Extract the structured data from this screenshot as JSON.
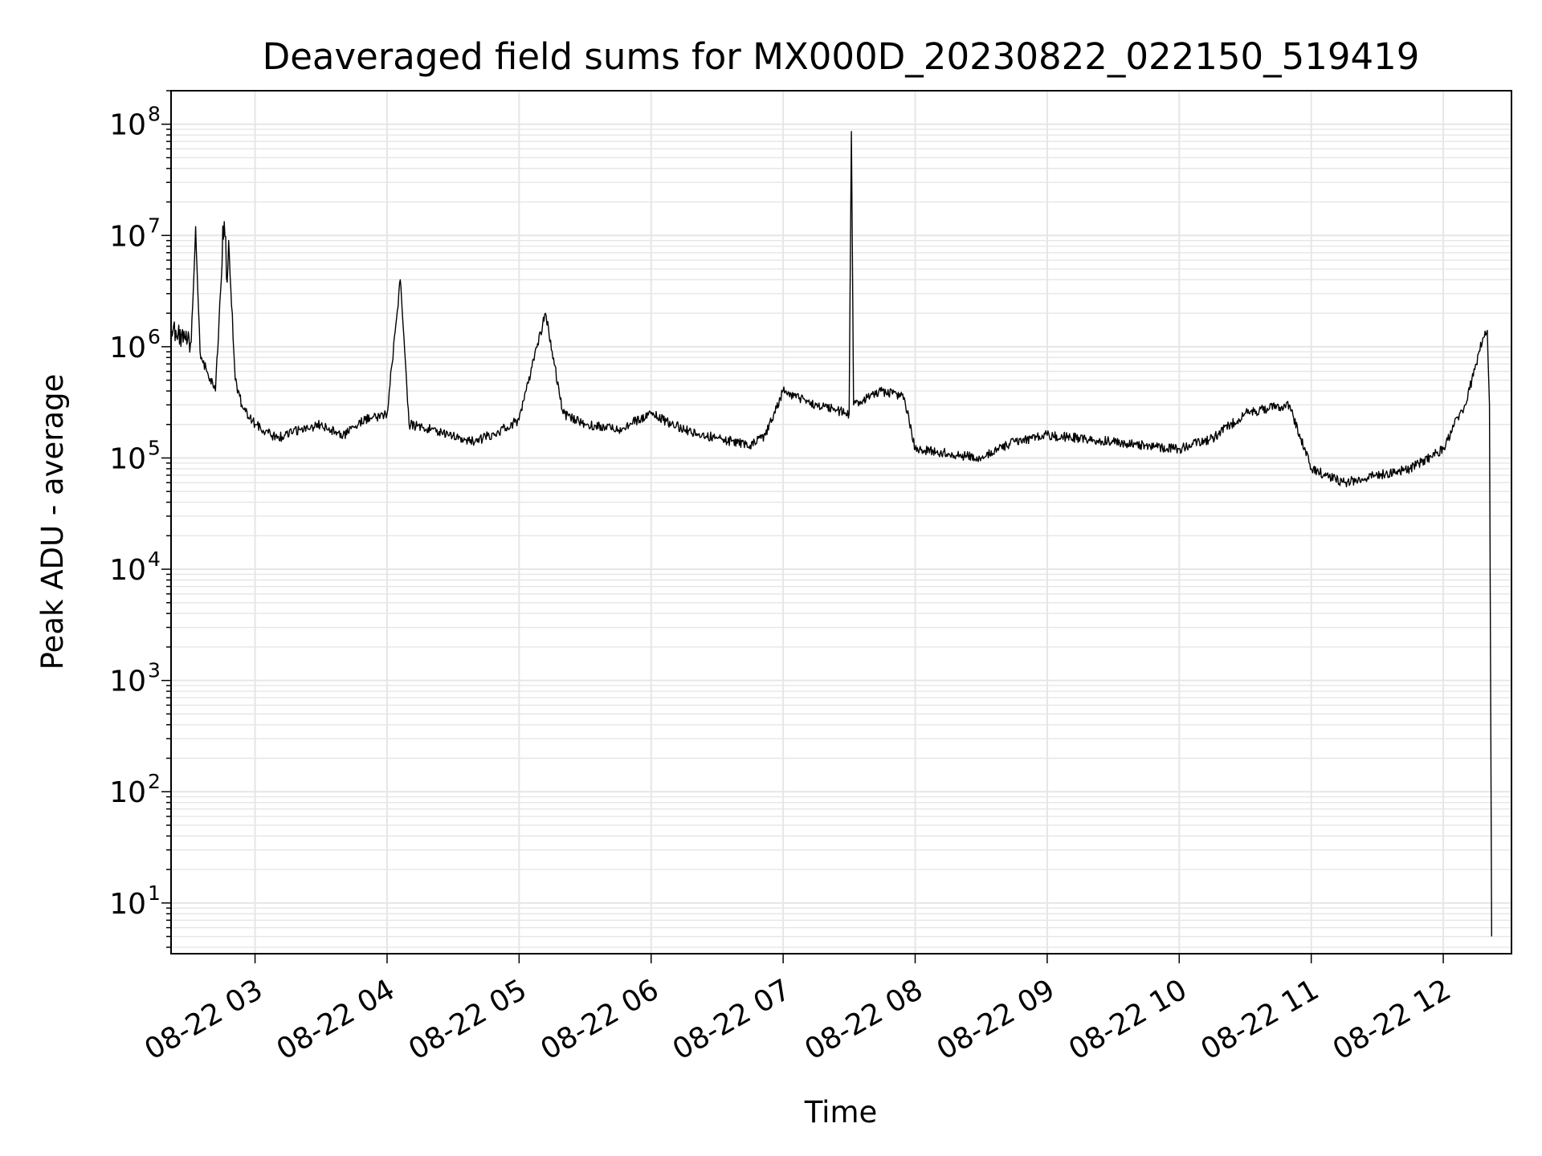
{
  "chart_data": {
    "type": "line",
    "title": "Deaveraged field sums for MX000D_20230822_022150_519419",
    "xlabel": "Time",
    "ylabel": "Peak ADU - average",
    "yscale": "log",
    "ylim": [
      3.5,
      200000000
    ],
    "xlim": [
      "2023-08-22 02:21:50",
      "2023-08-22 12:31:00"
    ],
    "x_tick_labels": [
      "08-22 03",
      "08-22 04",
      "08-22 05",
      "08-22 06",
      "08-22 07",
      "08-22 08",
      "08-22 09",
      "08-22 10",
      "08-22 11",
      "08-22 12"
    ],
    "y_tick_labels": [
      {
        "base": "10",
        "exp": "1"
      },
      {
        "base": "10",
        "exp": "2"
      },
      {
        "base": "10",
        "exp": "3"
      },
      {
        "base": "10",
        "exp": "4"
      },
      {
        "base": "10",
        "exp": "5"
      },
      {
        "base": "10",
        "exp": "6"
      },
      {
        "base": "10",
        "exp": "7"
      },
      {
        "base": "10",
        "exp": "8"
      }
    ],
    "grid": true,
    "line_color": "#000000",
    "grid_color": "#e6e6e6",
    "series": [
      {
        "x": [
          "2023-08-22 02:22",
          "2023-08-22 02:25",
          "2023-08-22 02:28",
          "2023-08-22 02:31",
          "2023-08-22 02:33",
          "2023-08-22 02:35",
          "2023-08-22 02:38",
          "2023-08-22 02:42",
          "2023-08-22 02:45",
          "2023-08-22 02:48",
          "2023-08-22 02:51",
          "2023-08-22 02:54",
          "2023-08-22 03:00",
          "2023-08-22 03:10",
          "2023-08-22 03:20",
          "2023-08-22 03:30",
          "2023-08-22 03:40",
          "2023-08-22 03:50",
          "2023-08-22 04:00",
          "2023-08-22 04:06",
          "2023-08-22 04:10",
          "2023-08-22 04:20",
          "2023-08-22 04:30",
          "2023-08-22 04:40",
          "2023-08-22 04:50",
          "2023-08-22 05:00",
          "2023-08-22 05:12",
          "2023-08-22 05:20",
          "2023-08-22 05:30",
          "2023-08-22 05:45",
          "2023-08-22 06:00",
          "2023-08-22 06:15",
          "2023-08-22 06:30",
          "2023-08-22 06:45",
          "2023-08-22 06:52",
          "2023-08-22 07:00",
          "2023-08-22 07:15",
          "2023-08-22 07:30",
          "2023-08-22 07:31",
          "2023-08-22 07:32",
          "2023-08-22 07:45",
          "2023-08-22 07:55",
          "2023-08-22 08:00",
          "2023-08-22 08:15",
          "2023-08-22 08:30",
          "2023-08-22 08:45",
          "2023-08-22 09:00",
          "2023-08-22 09:15",
          "2023-08-22 09:30",
          "2023-08-22 09:45",
          "2023-08-22 10:00",
          "2023-08-22 10:15",
          "2023-08-22 10:30",
          "2023-08-22 10:40",
          "2023-08-22 10:50",
          "2023-08-22 11:00",
          "2023-08-22 11:15",
          "2023-08-22 11:30",
          "2023-08-22 11:45",
          "2023-08-22 12:00",
          "2023-08-22 12:05",
          "2023-08-22 12:10",
          "2023-08-22 12:15",
          "2023-08-22 12:18",
          "2023-08-22 12:20",
          "2023-08-22 12:21",
          "2023-08-22 12:22"
        ],
        "y": [
          1400000,
          1300000,
          1200000,
          1100000,
          12000000,
          900000,
          600000,
          400000,
          5500000,
          9000000,
          500000,
          300000,
          200000,
          150000,
          180000,
          200000,
          160000,
          220000,
          250000,
          4000000,
          200000,
          180000,
          160000,
          140000,
          170000,
          220000,
          2000000,
          250000,
          200000,
          180000,
          250000,
          180000,
          150000,
          130000,
          160000,
          400000,
          300000,
          250000,
          86000000,
          300000,
          400000,
          350000,
          120000,
          110000,
          100000,
          140000,
          160000,
          150000,
          140000,
          130000,
          120000,
          150000,
          250000,
          280000,
          300000,
          80000,
          60000,
          70000,
          80000,
          120000,
          200000,
          300000,
          700000,
          1200000,
          1400000,
          300000,
          5
        ]
      }
    ]
  }
}
